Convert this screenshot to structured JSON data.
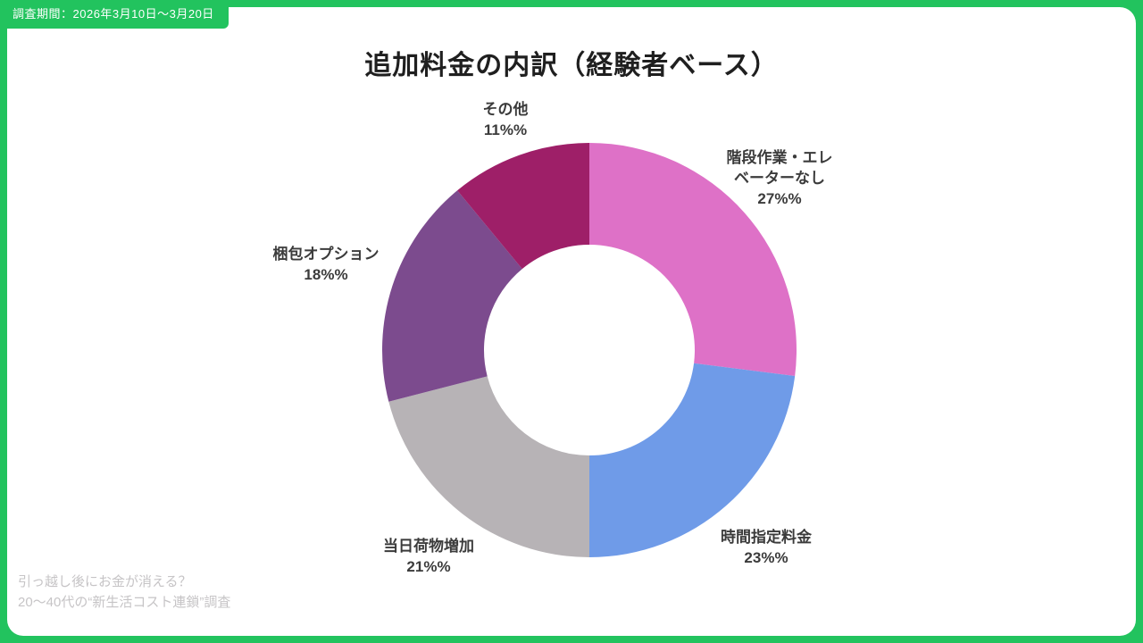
{
  "badge": {
    "text": "調査期間：2026年3月10日〜3月20日"
  },
  "title": "追加料金の内訳（経験者ベース）",
  "footer": {
    "line1": "引っ越し後にお金が消える？",
    "line2": "20〜40代の“新生活コスト連鎖”調査"
  },
  "colors": {
    "frame_green": "#22c35e",
    "card_background": "#ffffff",
    "label_text": "#3b3b3b",
    "footer_text": "#c6c4c6"
  },
  "chart_data": {
    "type": "pie",
    "donut": true,
    "title": "追加料金の内訳（経験者ベース）",
    "start_angle": "top",
    "direction": "clockwise",
    "inner_radius_ratio": 0.51,
    "legend_position": "none",
    "segments": [
      {
        "name": "階段作業・エレベーターなし",
        "value": 27,
        "label": "階段作業・エレ\nベーターなし\n27%%",
        "color": "#de71c7"
      },
      {
        "name": "時間指定料金",
        "value": 23,
        "label": "時間指定料金\n23%%",
        "color": "#6f9be8"
      },
      {
        "name": "当日荷物増加",
        "value": 21,
        "label": "当日荷物増加\n21%%",
        "color": "#b7b3b6"
      },
      {
        "name": "梱包オプション",
        "value": 18,
        "label": "梱包オプション\n18%%",
        "color": "#7c4b8e"
      },
      {
        "name": "その他",
        "value": 11,
        "label": "その他\n11%%",
        "color": "#9e1f68"
      }
    ]
  }
}
